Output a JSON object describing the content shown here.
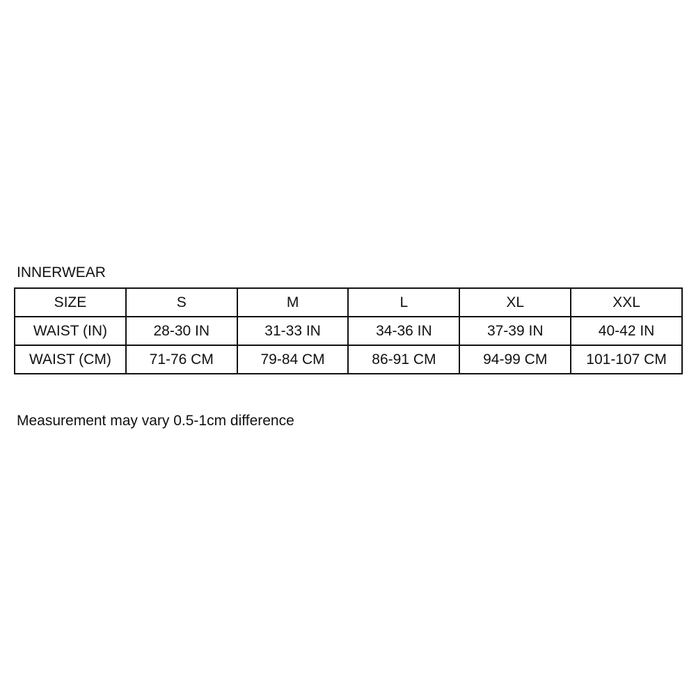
{
  "title": "INNERWEAR",
  "table": {
    "rows": [
      [
        "SIZE",
        "S",
        "M",
        "L",
        "XL",
        "XXL"
      ],
      [
        "WAIST (IN)",
        "28-30 IN",
        "31-33 IN",
        "34-36 IN",
        "37-39 IN",
        "40-42 IN"
      ],
      [
        "WAIST (CM)",
        "71-76 CM",
        "79-84 CM",
        "86-91 CM",
        "94-99 CM",
        "101-107 CM"
      ]
    ]
  },
  "note": "Measurement may vary 0.5-1cm difference"
}
